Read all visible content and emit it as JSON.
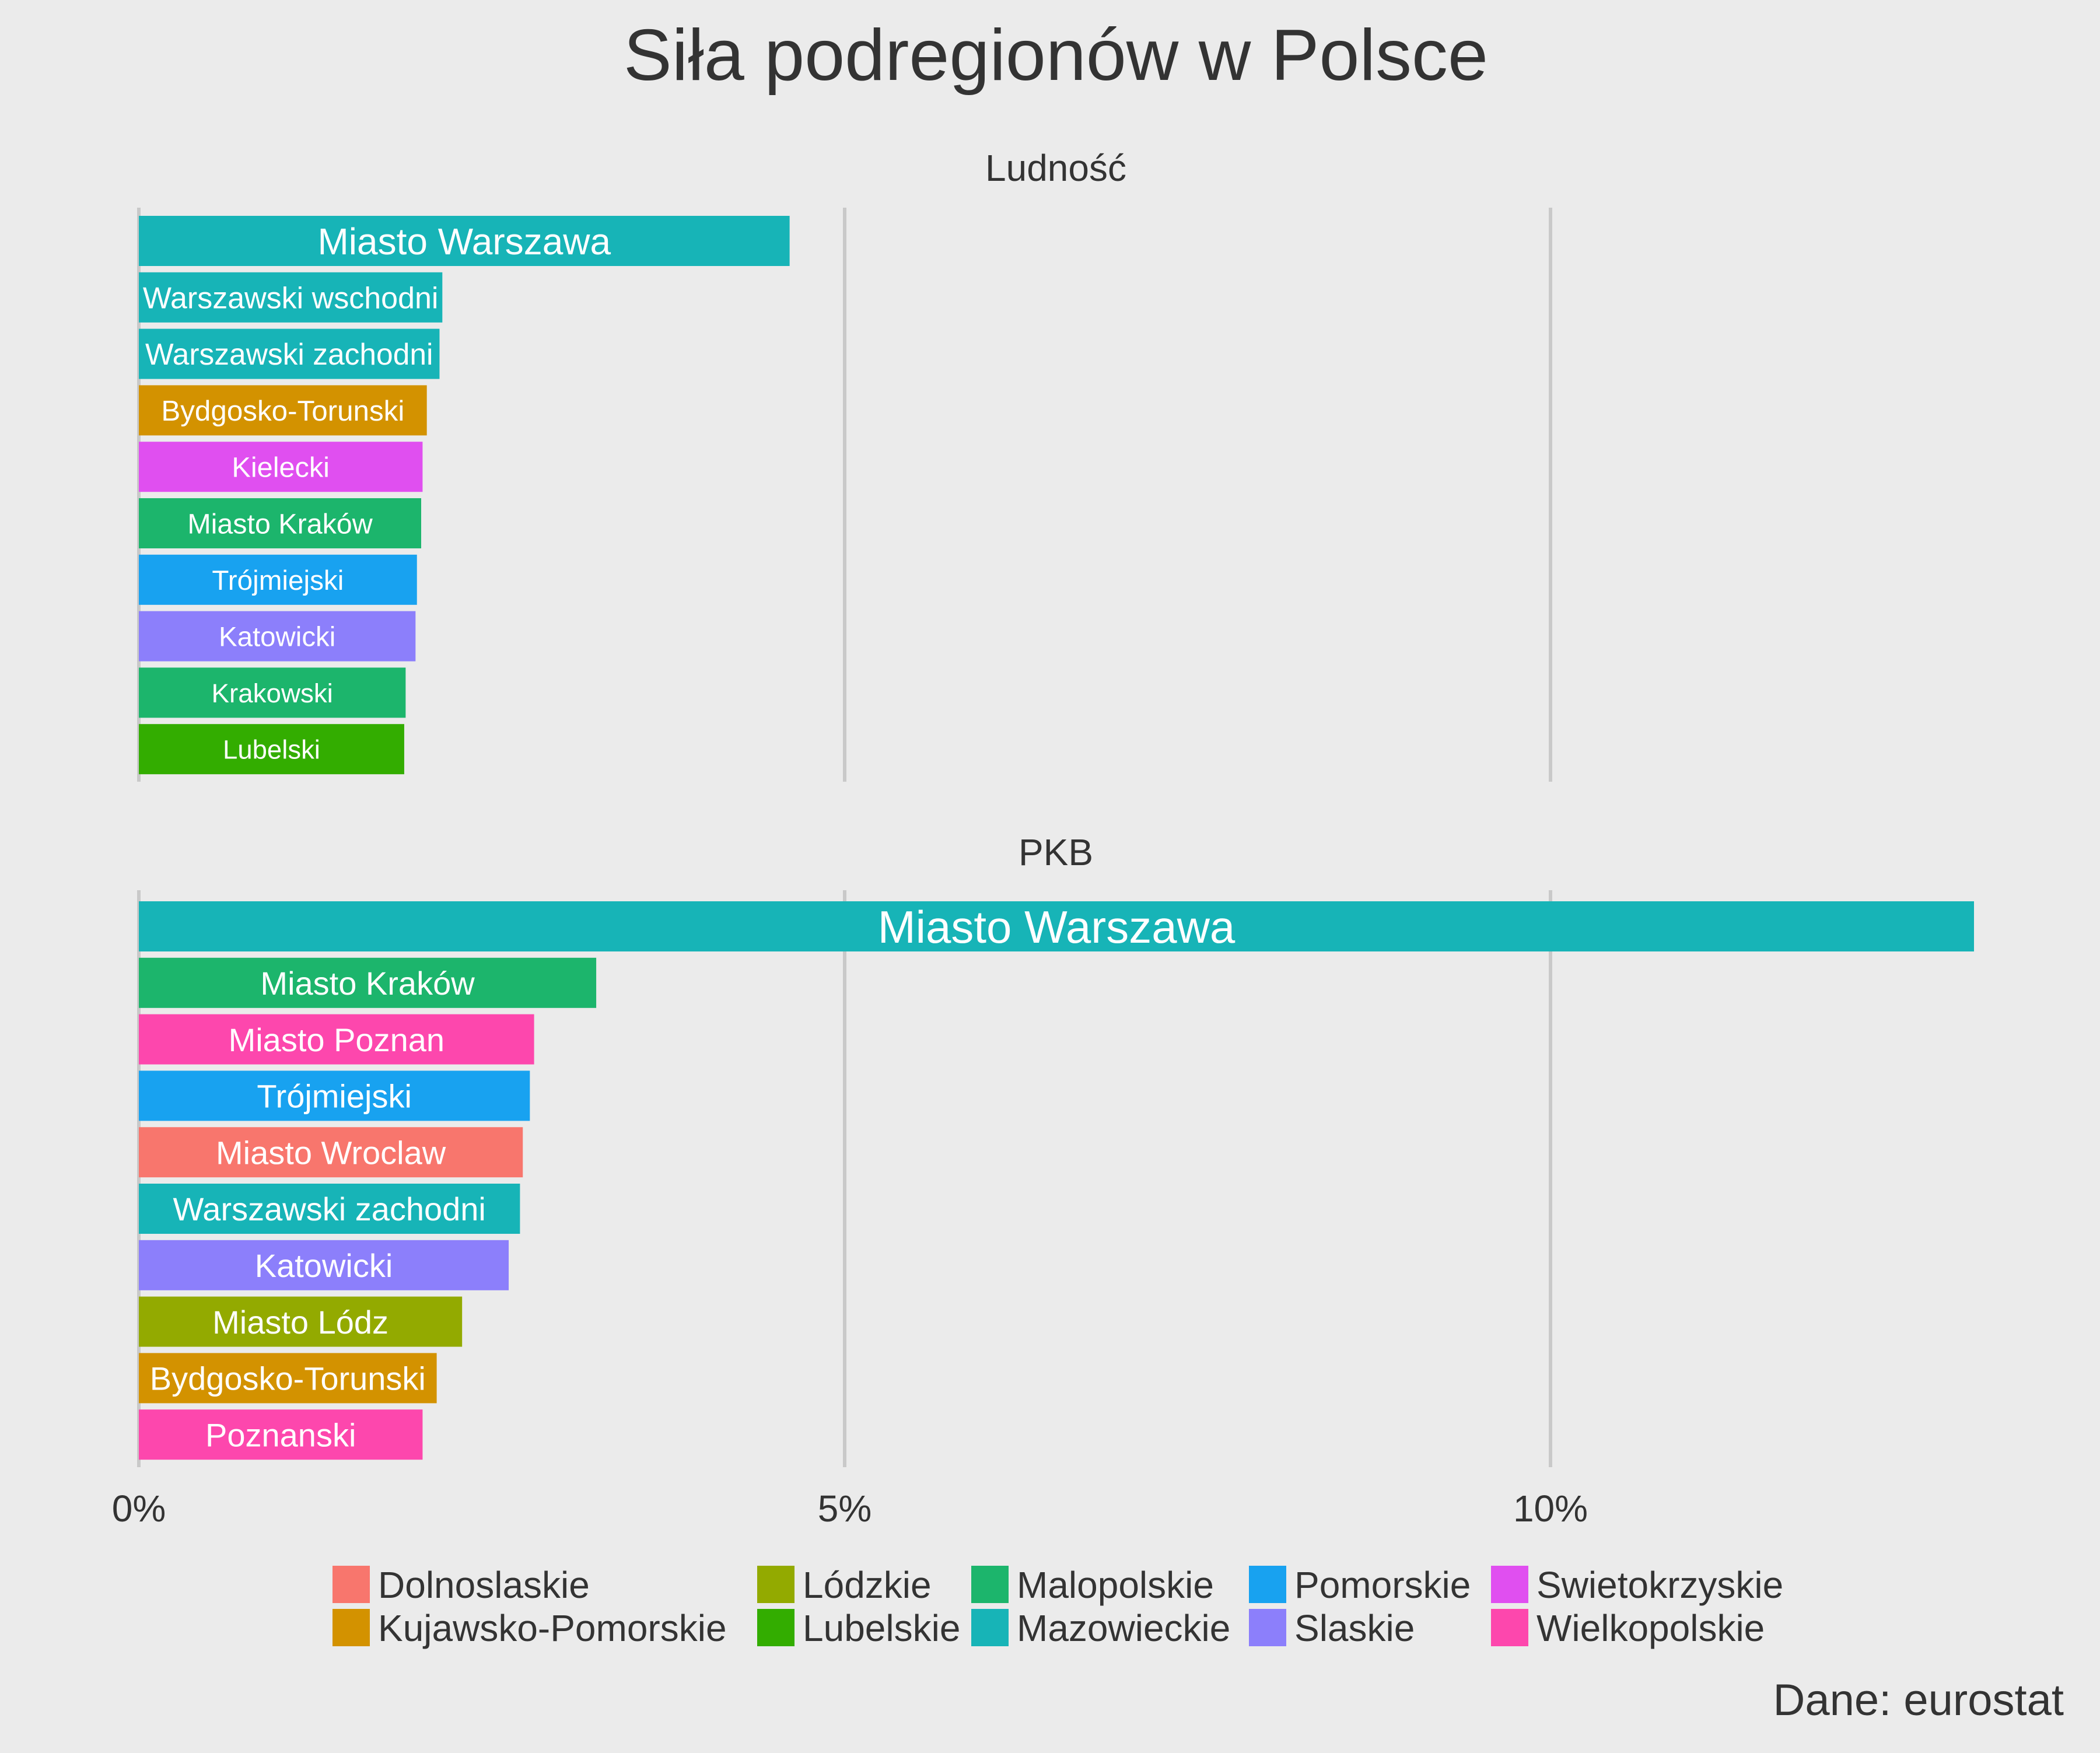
{
  "chart_data": {
    "type": "bar",
    "orientation": "horizontal",
    "title": "Siła podregionów w Polsce",
    "caption": "Dane: eurostat",
    "x_ticks": [
      {
        "value": 0,
        "label": "0%"
      },
      {
        "value": 5,
        "label": "5%"
      },
      {
        "value": 10,
        "label": "10%"
      }
    ],
    "xlim": [
      0,
      13
    ],
    "grid": true,
    "legend_position": "bottom",
    "colors": {
      "Dolnoslaskie": "#f8766d",
      "Kujawsko-Pomorskie": "#d39200",
      "Lódzkie": "#93aa00",
      "Lubelskie": "#33ad00",
      "Malopolskie": "#1cb56c",
      "Mazowieckie": "#17b4b7",
      "Pomorskie": "#18a2f0",
      "Slaskie": "#8c7ffb",
      "Swietokrzyskie": "#e04ff0",
      "Wielkopolskie": "#fd47ad"
    },
    "legend": [
      [
        "Dolnoslaskie",
        "Kujawsko-Pomorskie"
      ],
      [
        "Lódzkie",
        "Lubelskie"
      ],
      [
        "Malopolskie",
        "Mazowieckie"
      ],
      [
        "Pomorskie",
        "Slaskie"
      ],
      [
        "Swietokrzyskie",
        "Wielkopolskie"
      ]
    ],
    "panels": [
      {
        "title": "Ludność",
        "bars": [
          {
            "label": "Miasto Warszawa",
            "region": "Mazowieckie",
            "value": 4.61
          },
          {
            "label": "Warszawski wschodni",
            "region": "Mazowieckie",
            "value": 2.15
          },
          {
            "label": "Warszawski zachodni",
            "region": "Mazowieckie",
            "value": 2.13
          },
          {
            "label": "Bydgosko-Torunski",
            "region": "Kujawsko-Pomorskie",
            "value": 2.04
          },
          {
            "label": "Kielecki",
            "region": "Swietokrzyskie",
            "value": 2.01
          },
          {
            "label": "Miasto Kraków",
            "region": "Malopolskie",
            "value": 2.0
          },
          {
            "label": "Trójmiejski",
            "region": "Pomorskie",
            "value": 1.97
          },
          {
            "label": "Katowicki",
            "region": "Slaskie",
            "value": 1.96
          },
          {
            "label": "Krakowski",
            "region": "Malopolskie",
            "value": 1.89
          },
          {
            "label": "Lubelski",
            "region": "Lubelskie",
            "value": 1.88
          }
        ]
      },
      {
        "title": "PKB",
        "bars": [
          {
            "label": "Miasto Warszawa",
            "region": "Mazowieckie",
            "value": 13.0
          },
          {
            "label": "Miasto Kraków",
            "region": "Malopolskie",
            "value": 3.24
          },
          {
            "label": "Miasto Poznan",
            "region": "Wielkopolskie",
            "value": 2.8
          },
          {
            "label": "Trójmiejski",
            "region": "Pomorskie",
            "value": 2.77
          },
          {
            "label": "Miasto Wroclaw",
            "region": "Dolnoslaskie",
            "value": 2.72
          },
          {
            "label": "Warszawski zachodni",
            "region": "Mazowieckie",
            "value": 2.7
          },
          {
            "label": "Katowicki",
            "region": "Slaskie",
            "value": 2.62
          },
          {
            "label": "Miasto Lódz",
            "region": "Lódzkie",
            "value": 2.29
          },
          {
            "label": "Bydgosko-Torunski",
            "region": "Kujawsko-Pomorskie",
            "value": 2.11
          },
          {
            "label": "Poznanski",
            "region": "Wielkopolskie",
            "value": 2.01
          }
        ]
      }
    ]
  }
}
